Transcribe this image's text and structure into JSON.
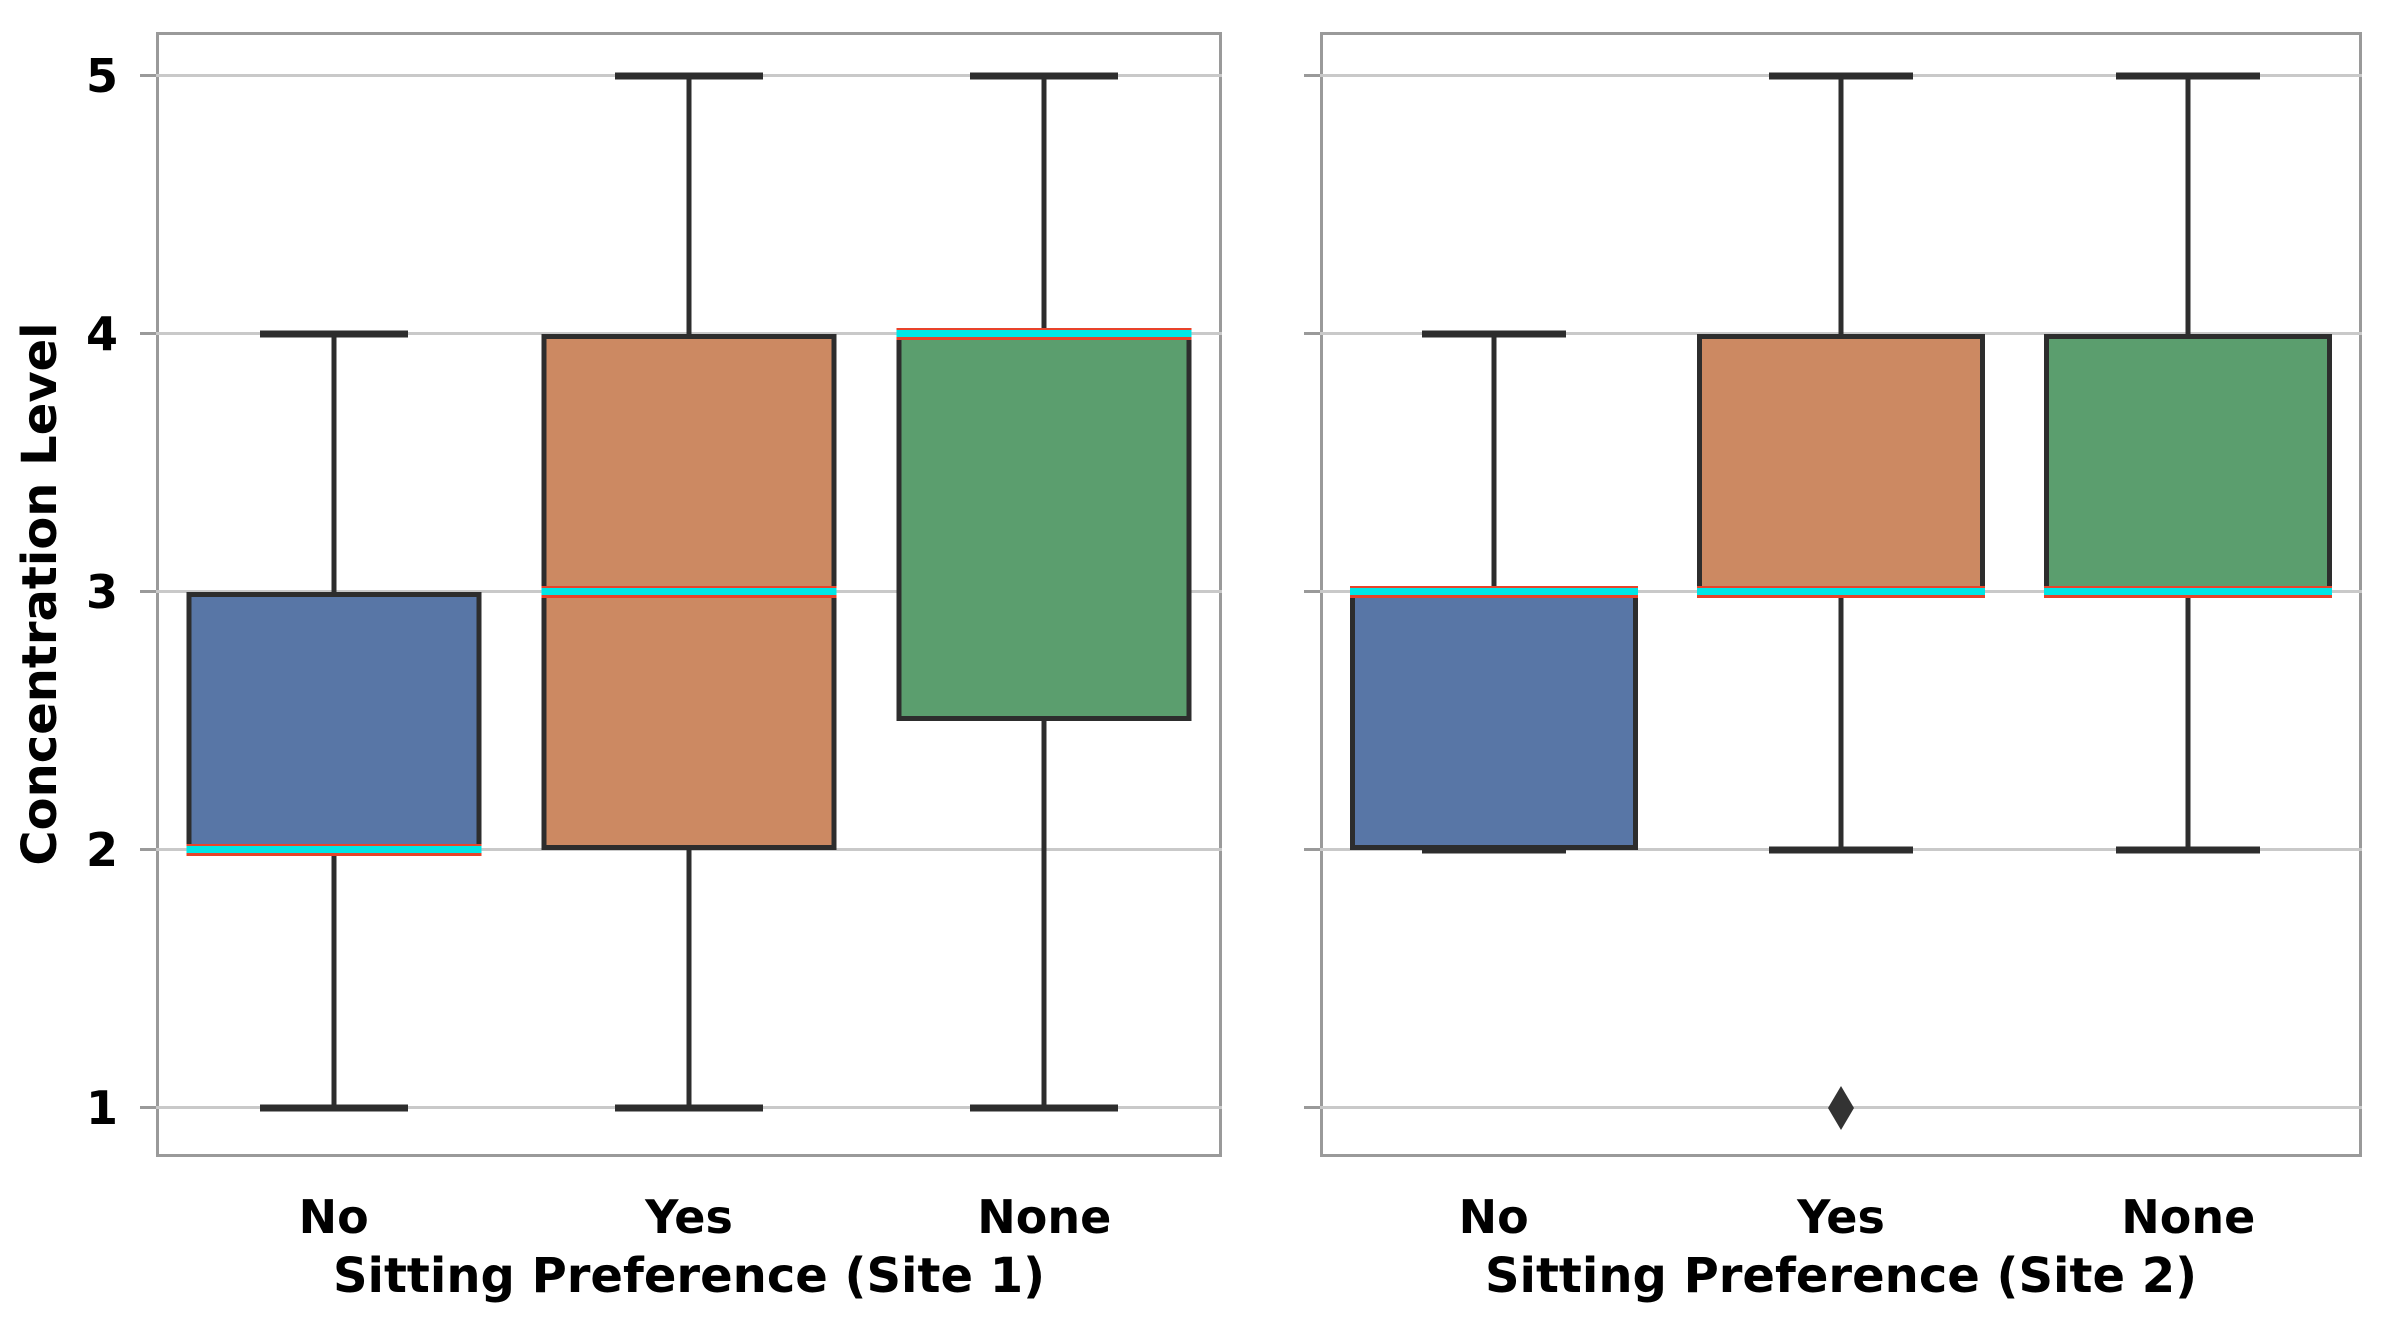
{
  "chart_data": [
    {
      "type": "box",
      "title": "",
      "xlabel": "Sitting Preference (Site 1)",
      "ylabel": "Concentration Level",
      "categories": [
        "No",
        "Yes",
        "None"
      ],
      "yticks": [
        1,
        2,
        3,
        4,
        5
      ],
      "ylim": [
        1,
        5
      ],
      "grid": "horizontal",
      "legend": "none",
      "boxes": [
        {
          "category": "No",
          "fill": "#5876a6",
          "whisker_low": 1,
          "q1": 2,
          "median": 2,
          "q3": 3,
          "whisker_high": 4,
          "outliers": []
        },
        {
          "category": "Yes",
          "fill": "#cc8962",
          "whisker_low": 1,
          "q1": 2,
          "median": 3,
          "q3": 4,
          "whisker_high": 5,
          "outliers": []
        },
        {
          "category": "None",
          "fill": "#5b9e6e",
          "whisker_low": 1,
          "q1": 2.5,
          "median": 4,
          "q3": 4,
          "whisker_high": 5,
          "outliers": []
        }
      ]
    },
    {
      "type": "box",
      "title": "",
      "xlabel": "Sitting Preference (Site 2)",
      "ylabel": "",
      "categories": [
        "No",
        "Yes",
        "None"
      ],
      "yticks": [
        1,
        2,
        3,
        4,
        5
      ],
      "ylim": [
        1,
        5
      ],
      "grid": "horizontal",
      "legend": "none",
      "boxes": [
        {
          "category": "No",
          "fill": "#5876a6",
          "whisker_low": 2,
          "q1": 2,
          "median": 3,
          "q3": 3,
          "whisker_high": 4,
          "outliers": []
        },
        {
          "category": "Yes",
          "fill": "#cc8962",
          "whisker_low": 2,
          "q1": 3,
          "median": 3,
          "q3": 4,
          "whisker_high": 5,
          "outliers": [
            1
          ]
        },
        {
          "category": "None",
          "fill": "#5b9e6e",
          "whisker_low": 2,
          "q1": 3,
          "median": 3,
          "q3": 4,
          "whisker_high": 5,
          "outliers": []
        }
      ]
    }
  ],
  "style": {
    "median_line_color": "#00e6e6",
    "median_underline_color": "#e8432a",
    "box_edge_color": "#2d2d2d",
    "whisker_color": "#2d2d2d",
    "outlier_color": "#333333",
    "gridline_color": "#c9c9c9",
    "axis_border_color": "#9a9a9a",
    "text_color": "#000000",
    "background": "#ffffff"
  }
}
